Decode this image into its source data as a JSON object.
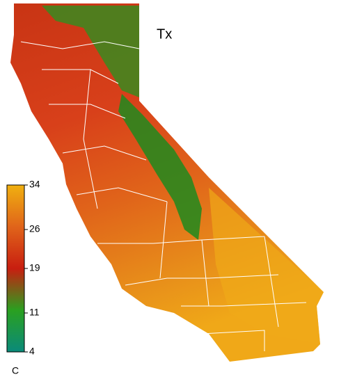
{
  "title": "Tx",
  "colorbar": {
    "unit": "C",
    "lim": [
      4,
      34
    ],
    "ticks": [
      34,
      26,
      19,
      11,
      4
    ],
    "colors": [
      "#0a8a7a",
      "#2aa020",
      "#c81e10",
      "#e0641a",
      "#f0b010"
    ]
  }
}
